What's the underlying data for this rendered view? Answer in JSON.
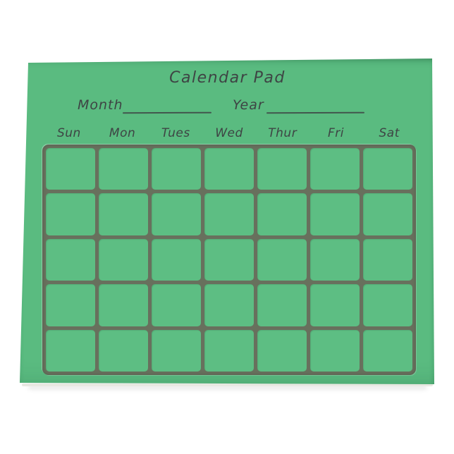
{
  "product": {
    "title": "Calendar Pad",
    "form": {
      "month_label": "Month",
      "year_label": "Year"
    },
    "day_headers": [
      "Sun",
      "Mon",
      "Tues",
      "Wed",
      "Thur",
      "Fri",
      "Sat"
    ],
    "grid": {
      "rows": 5,
      "cols": 7,
      "cell_count": 35
    },
    "colors": {
      "page_background": "#ffffff",
      "pad_green": "#5abb80",
      "cell_green": "#5dbe83",
      "grid_line": "#68705d",
      "ink": "#3e4444",
      "page_edge": "#e8e8e2"
    }
  }
}
